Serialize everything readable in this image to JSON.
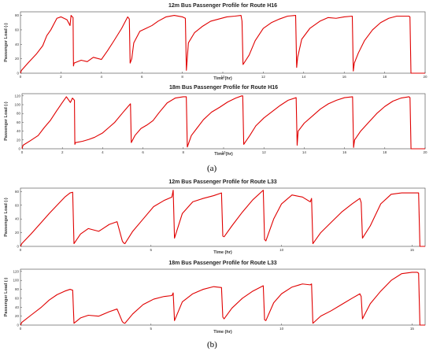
{
  "subfigure_labels": [
    "(a)",
    "(b)"
  ],
  "chart_data": [
    {
      "type": "line",
      "title": "12m Bus Passenger Profile for Route H16",
      "xlabel": "Time (hr)",
      "ylabel": "Passenger Load (-)",
      "xlim": [
        0,
        20
      ],
      "ylim": [
        0,
        85
      ],
      "xticks": [
        0,
        2,
        4,
        6,
        8,
        10,
        12,
        14,
        16,
        18,
        20
      ],
      "yticks": [
        0,
        20,
        40,
        60,
        80
      ],
      "grid": false,
      "color": "#e00000",
      "series": [
        {
          "x": [
            0,
            0.05,
            0.4,
            0.8,
            1.1,
            1.3,
            1.5,
            1.8,
            2.0,
            2.3,
            2.45,
            2.5,
            2.6,
            2.62,
            2.65,
            3.0,
            3.3,
            3.6,
            4.0,
            4.3,
            4.6,
            5.0,
            5.3,
            5.38,
            5.42,
            5.5,
            5.6,
            5.9,
            6.2,
            6.5,
            6.8,
            7.2,
            7.6,
            8.0,
            8.15,
            8.2,
            8.3,
            8.6,
            9.0,
            9.4,
            9.8,
            10.2,
            10.6,
            10.9,
            10.95,
            11.0,
            11.3,
            11.6,
            12.0,
            12.4,
            12.8,
            13.2,
            13.6,
            13.65,
            13.7,
            13.9,
            14.3,
            14.8,
            15.2,
            15.6,
            16.0,
            16.4,
            16.45,
            16.5,
            16.7,
            17.0,
            17.4,
            17.8,
            18.2,
            18.6,
            19.0,
            19.2,
            19.25,
            19.3,
            20
          ],
          "y": [
            0,
            4,
            15,
            27,
            38,
            52,
            60,
            76,
            78,
            74,
            66,
            80,
            77,
            10,
            14,
            18,
            16,
            22,
            19,
            31,
            44,
            62,
            78,
            75,
            14,
            20,
            42,
            58,
            62,
            66,
            72,
            78,
            80,
            78,
            76,
            4,
            42,
            56,
            65,
            72,
            75,
            78,
            79,
            80,
            72,
            12,
            25,
            45,
            62,
            70,
            75,
            79,
            80,
            8,
            22,
            47,
            62,
            72,
            77,
            76,
            78,
            79,
            3,
            14,
            28,
            45,
            60,
            70,
            76,
            79,
            79,
            79,
            78,
            0,
            0
          ]
        }
      ]
    },
    {
      "type": "line",
      "title": "18m Bus Passenger Profile for Route H16",
      "xlabel": "Time (hr)",
      "ylabel": "Passenger Load (-)",
      "xlim": [
        0,
        20
      ],
      "ylim": [
        0,
        125
      ],
      "xticks": [
        0,
        2,
        4,
        6,
        8,
        10,
        12,
        14,
        16,
        18,
        20
      ],
      "yticks": [
        0,
        20,
        40,
        60,
        80,
        100,
        120
      ],
      "grid": false,
      "color": "#e00000",
      "series": [
        {
          "x": [
            0,
            0.05,
            0.4,
            0.8,
            1.1,
            1.4,
            1.7,
            2.0,
            2.2,
            2.4,
            2.5,
            2.6,
            2.62,
            2.65,
            3.0,
            3.3,
            3.6,
            4.0,
            4.3,
            4.6,
            5.0,
            5.3,
            5.38,
            5.42,
            5.6,
            5.9,
            6.2,
            6.5,
            6.8,
            7.2,
            7.6,
            8.0,
            8.15,
            8.2,
            8.4,
            8.7,
            9.0,
            9.4,
            9.8,
            10.2,
            10.6,
            10.9,
            10.95,
            11.0,
            11.3,
            11.6,
            12.0,
            12.4,
            12.8,
            13.2,
            13.6,
            13.65,
            13.7,
            14.0,
            14.4,
            14.8,
            15.2,
            15.6,
            16.0,
            16.4,
            16.45,
            16.5,
            16.8,
            17.2,
            17.6,
            18.0,
            18.4,
            18.8,
            19.2,
            19.25,
            19.3,
            20
          ],
          "y": [
            0,
            8,
            18,
            30,
            48,
            64,
            85,
            105,
            118,
            105,
            115,
            110,
            10,
            14,
            17,
            21,
            26,
            36,
            48,
            60,
            82,
            98,
            102,
            14,
            30,
            46,
            54,
            64,
            82,
            104,
            115,
            118,
            118,
            4,
            30,
            48,
            66,
            83,
            94,
            106,
            115,
            120,
            120,
            10,
            30,
            52,
            70,
            84,
            98,
            110,
            116,
            8,
            40,
            58,
            74,
            90,
            102,
            110,
            116,
            118,
            3,
            20,
            40,
            60,
            80,
            96,
            108,
            115,
            118,
            116,
            0,
            0
          ]
        }
      ]
    },
    {
      "type": "line",
      "title": "12m Bus Passenger Profile for Route L33",
      "xlabel": "Time (hr)",
      "ylabel": "Passenger Load (-)",
      "xlim": [
        0,
        15.5
      ],
      "ylim": [
        0,
        85
      ],
      "xticks": [
        0,
        5,
        10,
        15
      ],
      "yticks": [
        0,
        20,
        40,
        60,
        80
      ],
      "grid": false,
      "color": "#e00000",
      "series": [
        {
          "x": [
            0,
            0.05,
            0.4,
            0.8,
            1.1,
            1.4,
            1.7,
            1.9,
            2.0,
            2.05,
            2.3,
            2.6,
            3.0,
            3.4,
            3.7,
            3.9,
            3.95,
            4.0,
            4.3,
            4.7,
            5.1,
            5.5,
            5.8,
            5.85,
            5.9,
            6.2,
            6.6,
            7.0,
            7.4,
            7.7,
            7.75,
            7.8,
            8.1,
            8.5,
            8.9,
            9.3,
            9.35,
            9.4,
            9.7,
            10.0,
            10.4,
            10.8,
            11.1,
            11.15,
            11.2,
            11.5,
            11.9,
            12.3,
            12.7,
            13.0,
            13.05,
            13.1,
            13.4,
            13.8,
            14.2,
            14.6,
            15.0,
            15.2,
            15.25,
            15.3,
            15.5
          ],
          "y": [
            0,
            4,
            18,
            35,
            48,
            60,
            72,
            78,
            79,
            4,
            18,
            26,
            22,
            32,
            36,
            8,
            5,
            4,
            22,
            40,
            58,
            67,
            72,
            82,
            12,
            48,
            65,
            70,
            74,
            78,
            15,
            14,
            30,
            50,
            68,
            82,
            10,
            8,
            40,
            62,
            75,
            72,
            65,
            70,
            4,
            20,
            35,
            50,
            62,
            70,
            64,
            12,
            30,
            62,
            76,
            78,
            78,
            78,
            78,
            0,
            0
          ]
        }
      ]
    },
    {
      "type": "line",
      "title": "18m Bus Passenger Profile for Route L33",
      "xlabel": "Time (hr)",
      "ylabel": "Passenger Load (-)",
      "xlim": [
        0,
        15.5
      ],
      "ylim": [
        0,
        125
      ],
      "xticks": [
        0,
        5,
        10,
        15
      ],
      "yticks": [
        0,
        20,
        40,
        60,
        80,
        100,
        120
      ],
      "grid": false,
      "color": "#e00000",
      "series": [
        {
          "x": [
            0,
            0.05,
            0.4,
            0.8,
            1.1,
            1.4,
            1.7,
            1.9,
            2.0,
            2.05,
            2.3,
            2.6,
            3.0,
            3.4,
            3.7,
            3.9,
            3.95,
            4.0,
            4.3,
            4.7,
            5.1,
            5.5,
            5.8,
            5.85,
            5.9,
            6.2,
            6.6,
            7.0,
            7.4,
            7.7,
            7.75,
            7.8,
            8.1,
            8.5,
            8.9,
            9.3,
            9.35,
            9.4,
            9.7,
            10.0,
            10.4,
            10.8,
            11.1,
            11.15,
            11.2,
            11.5,
            11.9,
            12.3,
            12.7,
            13.0,
            13.05,
            13.1,
            13.4,
            13.8,
            14.2,
            14.6,
            15.0,
            15.2,
            15.25,
            15.3,
            15.5
          ],
          "y": [
            0,
            6,
            22,
            40,
            56,
            68,
            76,
            80,
            78,
            4,
            16,
            22,
            20,
            30,
            36,
            8,
            5,
            4,
            25,
            46,
            58,
            64,
            66,
            72,
            10,
            52,
            70,
            80,
            86,
            84,
            18,
            14,
            38,
            60,
            76,
            88,
            12,
            10,
            50,
            70,
            85,
            92,
            90,
            92,
            4,
            20,
            32,
            46,
            60,
            70,
            64,
            14,
            48,
            76,
            100,
            115,
            118,
            118,
            116,
            0,
            0
          ]
        }
      ]
    }
  ]
}
